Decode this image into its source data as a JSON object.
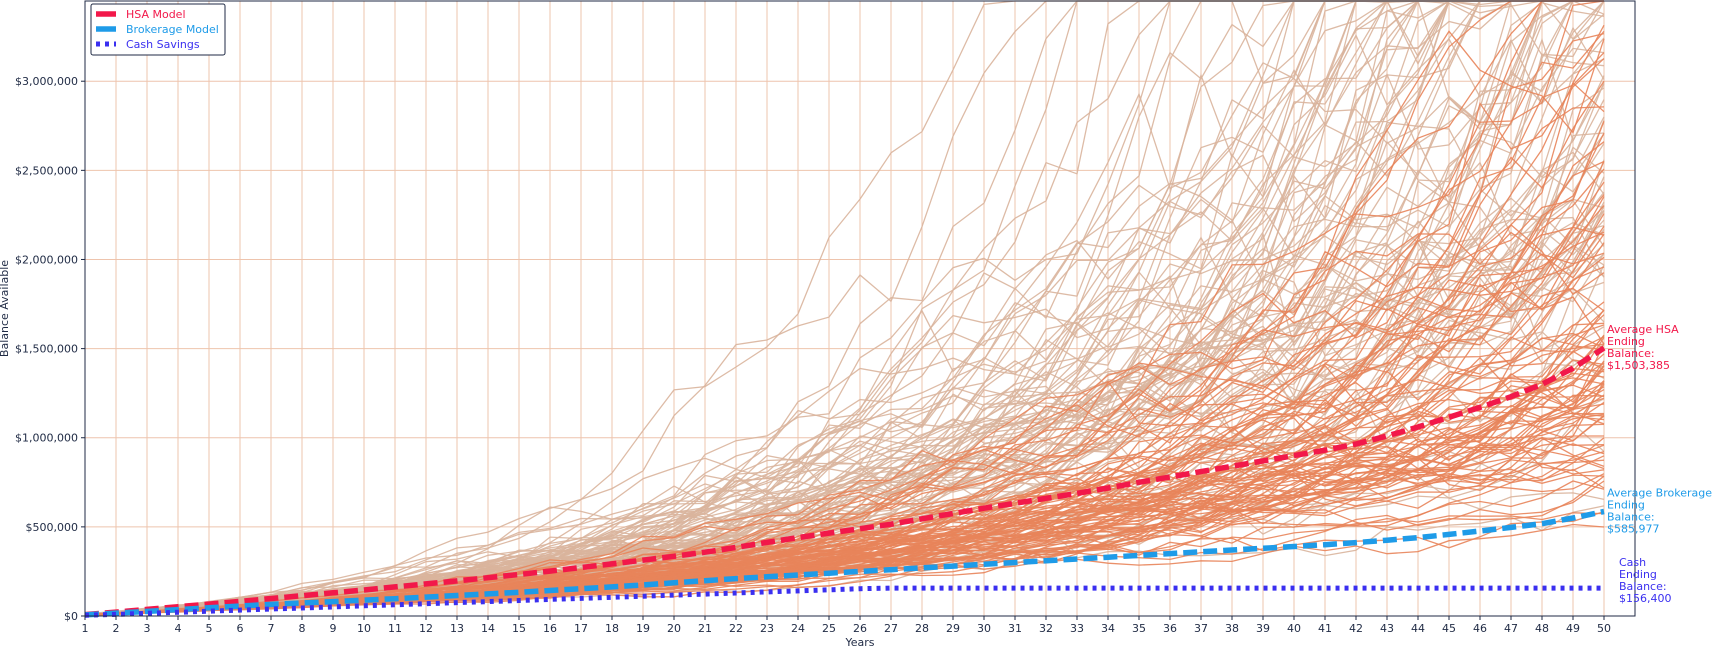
{
  "chart_data": {
    "type": "line",
    "title": "",
    "xlabel": "Years",
    "ylabel": "Balance Available",
    "x": [
      1,
      2,
      3,
      4,
      5,
      6,
      7,
      8,
      9,
      10,
      11,
      12,
      13,
      14,
      15,
      16,
      17,
      18,
      19,
      20,
      21,
      22,
      23,
      24,
      25,
      26,
      27,
      28,
      29,
      30,
      31,
      32,
      33,
      34,
      35,
      36,
      37,
      38,
      39,
      40,
      41,
      42,
      43,
      44,
      45,
      46,
      47,
      48,
      49,
      50
    ],
    "xlim": [
      1,
      51
    ],
    "ylim": [
      0,
      3450000
    ],
    "yticks": [
      0,
      500000,
      1000000,
      1500000,
      2000000,
      2500000,
      3000000
    ],
    "ytick_labels": [
      "$0",
      "$500,000",
      "$1,000,000",
      "$1,500,000",
      "$2,000,000",
      "$2,500,000",
      "$3,000,000"
    ],
    "grid": true,
    "legend_position": "top-left",
    "series": [
      {
        "name": "HSA Model",
        "color": "#f2184a",
        "style": "dashed",
        "values": [
          8000,
          22000,
          37000,
          52000,
          67000,
          82000,
          98000,
          114000,
          130000,
          146000,
          163000,
          180000,
          197000,
          215000,
          233000,
          252000,
          272000,
          292000,
          313000,
          335000,
          358000,
          385000,
          413000,
          440000,
          465000,
          490000,
          515000,
          545000,
          575000,
          605000,
          632000,
          660000,
          688000,
          718000,
          750000,
          780000,
          810000,
          840000,
          870000,
          900000,
          930000,
          965000,
          1010000,
          1060000,
          1115000,
          1170000,
          1230000,
          1300000,
          1390000,
          1503385
        ]
      },
      {
        "name": "Brokerage Model",
        "color": "#1e9be8",
        "style": "dashed",
        "values": [
          6000,
          16000,
          26000,
          36000,
          46000,
          56000,
          65000,
          73000,
          81000,
          89000,
          97000,
          106000,
          115000,
          124000,
          133000,
          143000,
          153000,
          163000,
          174000,
          186000,
          198000,
          210000,
          220000,
          230000,
          240000,
          250000,
          260000,
          270000,
          280000,
          290000,
          300000,
          310000,
          320000,
          330000,
          340000,
          350000,
          360000,
          370000,
          380000,
          390000,
          400000,
          412000,
          425000,
          440000,
          458000,
          477000,
          497000,
          518000,
          550000,
          585977
        ]
      },
      {
        "name": "Cash Savings",
        "color": "#3a2ff0",
        "style": "dotted",
        "values": [
          4000,
          9000,
          15000,
          21000,
          27000,
          33000,
          39000,
          45000,
          51000,
          57000,
          63000,
          69000,
          75000,
          81000,
          87000,
          93000,
          99000,
          105000,
          111000,
          117000,
          123000,
          129000,
          135000,
          141000,
          147000,
          153000,
          156400,
          156400,
          156400,
          156400,
          156400,
          156400,
          156400,
          156400,
          156400,
          156400,
          156400,
          156400,
          156400,
          156400,
          156400,
          156400,
          156400,
          156400,
          156400,
          156400,
          156400,
          156400,
          156400,
          156400
        ]
      }
    ],
    "simulations": {
      "hsa_color": "#d9b49c",
      "brokerage_color": "#e8845a",
      "count_per_model": 100,
      "seed": 7
    },
    "annotations": [
      {
        "series": "HSA Model",
        "lines": [
          "Average HSA",
          "Ending",
          "Balance:",
          "$1,503,385"
        ],
        "color": "#f2184a"
      },
      {
        "series": "Brokerage Model",
        "lines": [
          "Average Brokerage",
          "Ending",
          "Balance:",
          "$585,977"
        ],
        "color": "#1e9be8"
      },
      {
        "series": "Cash Savings",
        "lines": [
          "Cash",
          "Ending",
          "Balance:",
          "$156,400"
        ],
        "color": "#3a2ff0"
      }
    ],
    "grid_color": "#eec4ad",
    "axis_color": "#1f2a44"
  }
}
